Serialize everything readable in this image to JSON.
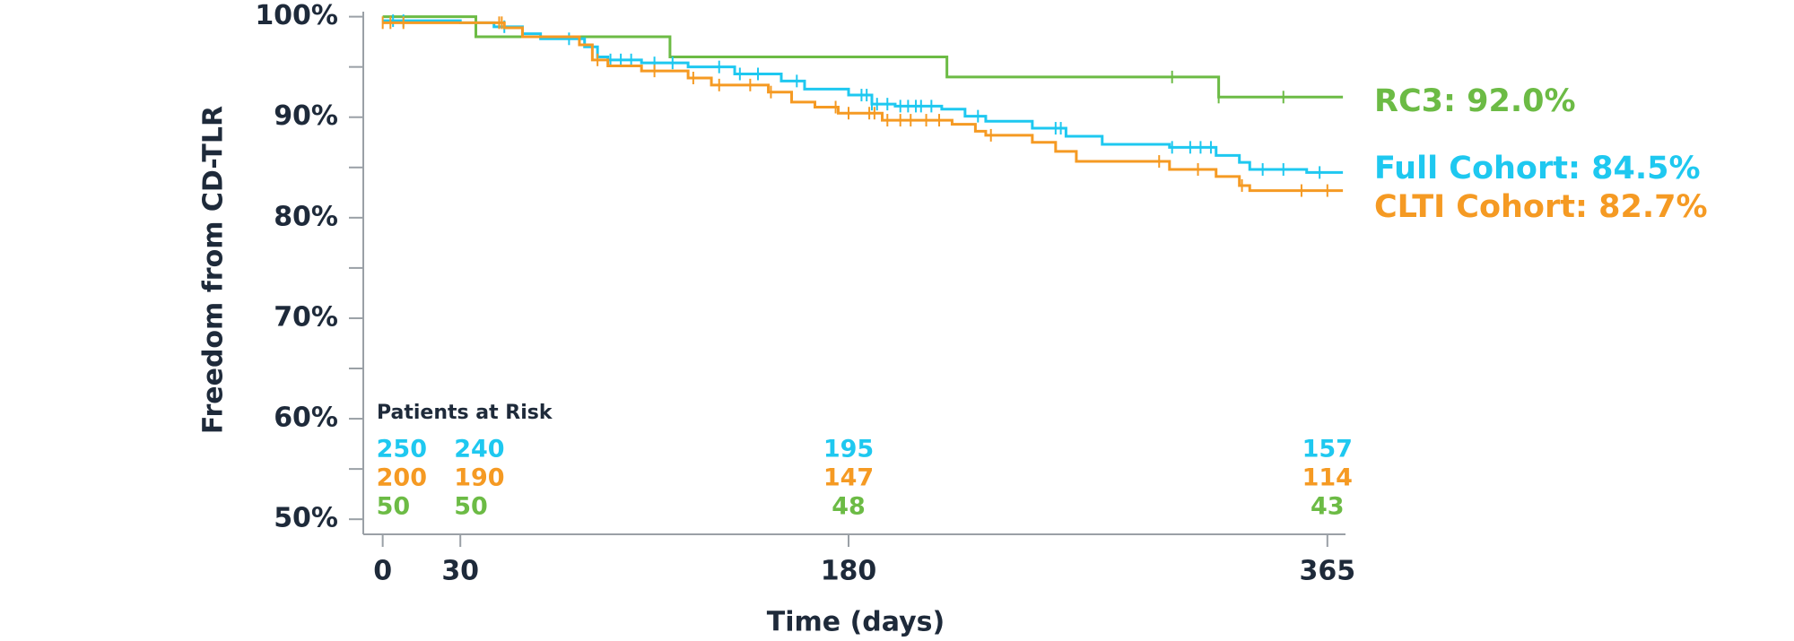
{
  "chart_data": {
    "type": "step",
    "x_label": "Time (days)",
    "y_label": "Freedom from CD-TLR",
    "xlim": [
      -7.5,
      372
    ],
    "ylim": [
      48.5,
      100.5
    ],
    "xticks": [
      0,
      30,
      180,
      365
    ],
    "yticks": [
      {
        "value": 50,
        "label": "50%"
      },
      {
        "value": 60,
        "label": "60%"
      },
      {
        "value": 70,
        "label": "70%"
      },
      {
        "value": 80,
        "label": "80%"
      },
      {
        "value": 90,
        "label": "90%"
      },
      {
        "value": 100,
        "label": "100%"
      }
    ],
    "yminor": [
      55,
      65,
      75,
      85,
      95
    ],
    "series": [
      {
        "name": "RC3",
        "end_label": "RC3: 92.0%",
        "color": "#6cbb45",
        "x": [
          0,
          36,
          111,
          218,
          323,
          371
        ],
        "values": [
          100,
          98,
          96,
          94,
          92,
          92
        ],
        "censored_x": [
          305,
          323,
          348
        ]
      },
      {
        "name": "Full Cohort",
        "end_label": "Full Cohort: 84.5%",
        "color": "#1ec8f0",
        "x": [
          0,
          30,
          43,
          54,
          61,
          78,
          83,
          87,
          100,
          118,
          136,
          154,
          163,
          180,
          189,
          198,
          216,
          225,
          233,
          251,
          264,
          278,
          304,
          322,
          331,
          335,
          357,
          371
        ],
        "values": [
          99.6,
          99.4,
          99,
          98.3,
          97.8,
          97,
          96,
          95.7,
          95.4,
          95,
          94.3,
          93.6,
          92.8,
          92.2,
          91.3,
          91.1,
          90.8,
          90.1,
          89.6,
          88.9,
          88.1,
          87.3,
          87,
          86.2,
          85.5,
          84.8,
          84.5,
          84.5
        ],
        "censored_x": [
          4,
          8,
          47,
          72,
          88,
          92,
          96,
          105,
          112,
          130,
          138,
          145,
          160,
          185,
          187,
          189,
          191,
          195,
          200,
          203,
          206,
          208,
          212,
          230,
          260,
          262,
          305,
          312,
          316,
          320,
          340,
          348,
          362
        ]
      },
      {
        "name": "CLTI Cohort",
        "end_label": "CLTI Cohort: 82.7%",
        "color": "#f59a23",
        "x": [
          0,
          36,
          47,
          54,
          76,
          81,
          87,
          100,
          118,
          127,
          149,
          158,
          167,
          176,
          193,
          220,
          229,
          233,
          251,
          260,
          268,
          300,
          304,
          322,
          331,
          335,
          371
        ],
        "values": [
          99.4,
          99.4,
          98.9,
          98,
          97.2,
          95.7,
          95.1,
          94.6,
          93.9,
          93.2,
          92.5,
          91.5,
          91,
          90.4,
          89.7,
          89.3,
          88.6,
          88.2,
          87.5,
          86.6,
          85.6,
          85.6,
          84.8,
          84.1,
          83.2,
          82.7,
          82.7
        ],
        "censored_x": [
          0,
          3,
          8,
          45,
          46,
          83,
          105,
          120,
          130,
          142,
          150,
          175,
          180,
          188,
          190,
          195,
          200,
          204,
          210,
          215,
          235,
          300,
          315,
          332,
          355,
          365
        ]
      }
    ],
    "risk_table": {
      "title": "Patients at Risk",
      "rows": [
        {
          "color": "#1ec8f0",
          "values": [
            250,
            240,
            195,
            157
          ]
        },
        {
          "color": "#f59a23",
          "values": [
            200,
            190,
            147,
            114
          ]
        },
        {
          "color": "#6cbb45",
          "values": [
            50,
            50,
            48,
            43
          ]
        }
      ]
    }
  }
}
